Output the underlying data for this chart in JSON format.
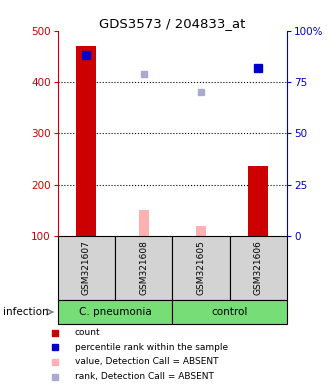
{
  "title": "GDS3573 / 204833_at",
  "samples": [
    "GSM321607",
    "GSM321608",
    "GSM321605",
    "GSM321606"
  ],
  "group_label": "infection",
  "count_values": [
    470,
    null,
    null,
    237
  ],
  "count_color": "#cc0000",
  "value_absent": [
    null,
    150,
    120,
    null
  ],
  "value_absent_color": "#ffb0b0",
  "rank_absent_pct": [
    null,
    79,
    70,
    null
  ],
  "rank_absent_color": "#aaaacc",
  "percentile_present_pct": [
    88,
    null,
    null,
    82
  ],
  "percentile_color": "#0000cc",
  "ylim_left": [
    100,
    500
  ],
  "ylim_right": [
    0,
    100
  ],
  "yticks_left": [
    100,
    200,
    300,
    400,
    500
  ],
  "yticks_right": [
    0,
    25,
    50,
    75,
    100
  ],
  "ytick_labels_right": [
    "0",
    "25",
    "50",
    "75",
    "100%"
  ],
  "left_axis_color": "#cc0000",
  "right_axis_color": "#0000cc",
  "bar_width": 0.35,
  "absent_bar_width": 0.18,
  "sample_box_color": "#d3d3d3",
  "group_green": "#77dd77",
  "groups_unique": [
    [
      "C. pneumonia",
      0,
      2
    ],
    [
      "control",
      2,
      4
    ]
  ],
  "legend_items": [
    {
      "label": "count",
      "color": "#cc0000"
    },
    {
      "label": "percentile rank within the sample",
      "color": "#0000cc"
    },
    {
      "label": "value, Detection Call = ABSENT",
      "color": "#ffb0b0"
    },
    {
      "label": "rank, Detection Call = ABSENT",
      "color": "#aaaacc"
    }
  ]
}
